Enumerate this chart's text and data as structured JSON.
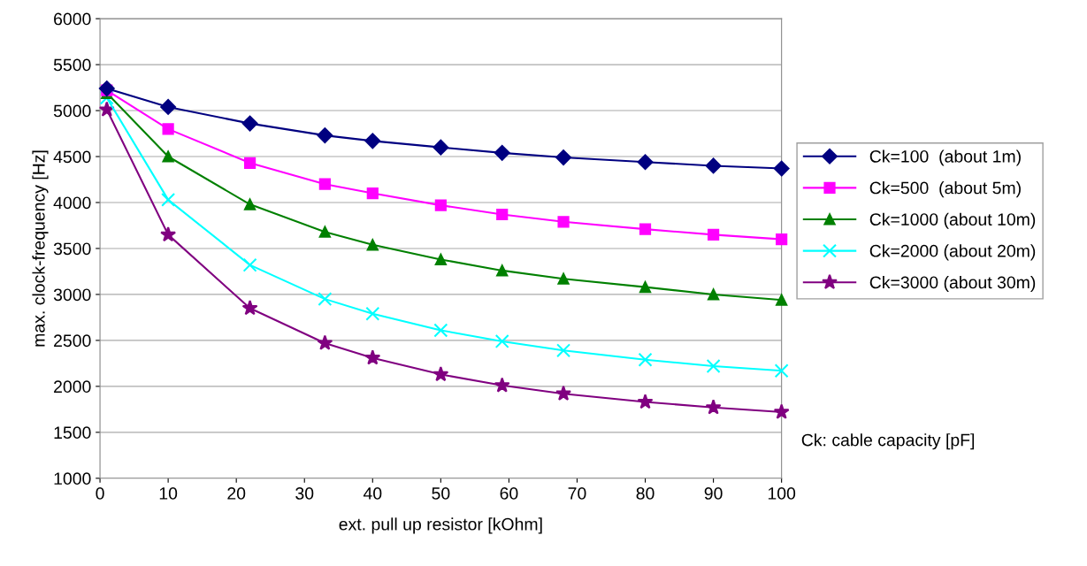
{
  "chart_data": {
    "type": "line",
    "xlabel": "ext. pull up resistor [kOhm]",
    "ylabel": "max. clock-frequency [Hz]",
    "x": [
      1,
      10,
      22,
      33,
      40,
      50,
      59,
      68,
      80,
      90,
      100
    ],
    "series": [
      {
        "name": "Ck=100  (about 1m)",
        "color": "#000080",
        "marker": "diamond",
        "values": [
          5240,
          5040,
          4860,
          4730,
          4670,
          4600,
          4540,
          4490,
          4440,
          4400,
          4370
        ]
      },
      {
        "name": "Ck=500  (about 5m)",
        "color": "#ff00ff",
        "marker": "square",
        "values": [
          5220,
          4800,
          4430,
          4200,
          4100,
          3970,
          3870,
          3790,
          3710,
          3650,
          3600
        ]
      },
      {
        "name": "Ck=1000 (about 10m)",
        "color": "#008000",
        "marker": "triangle",
        "values": [
          5190,
          4500,
          3980,
          3680,
          3540,
          3380,
          3260,
          3170,
          3080,
          3000,
          2940
        ]
      },
      {
        "name": "Ck=2000 (about 20m)",
        "color": "#00ffff",
        "marker": "cross",
        "values": [
          5140,
          4030,
          3320,
          2950,
          2790,
          2610,
          2490,
          2390,
          2290,
          2220,
          2170
        ]
      },
      {
        "name": "Ck=3000 (about 30m)",
        "color": "#800080",
        "marker": "star",
        "values": [
          5010,
          3650,
          2850,
          2470,
          2310,
          2130,
          2010,
          1920,
          1830,
          1770,
          1720
        ]
      }
    ],
    "xlim": [
      0,
      100
    ],
    "xticks": [
      0,
      10,
      20,
      30,
      40,
      50,
      60,
      70,
      80,
      90,
      100
    ],
    "ylim": [
      1000,
      6000
    ],
    "yticks": [
      1000,
      1500,
      2000,
      2500,
      3000,
      3500,
      4000,
      4500,
      5000,
      5500,
      6000
    ],
    "grid": "y",
    "legend": "right",
    "line_style": "solid",
    "annotations": [
      "Ck: cable capacity [pF]"
    ]
  }
}
